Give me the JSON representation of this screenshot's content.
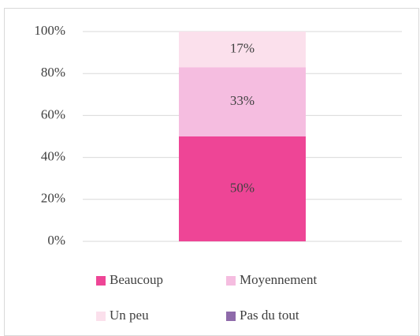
{
  "chart_data": {
    "type": "stacked_bar",
    "categories": [
      null
    ],
    "series": [
      {
        "name": "Beaucoup",
        "color": "#ee4596",
        "values": [
          50
        ],
        "value_labels": [
          "50%"
        ]
      },
      {
        "name": "Moyennement",
        "color": "#f5bde0",
        "values": [
          33
        ],
        "value_labels": [
          "33%"
        ]
      },
      {
        "name": "Un peu",
        "color": "#fbe0ec",
        "values": [
          17
        ],
        "value_labels": [
          "17%"
        ]
      },
      {
        "name": "Pas du tout",
        "color": "#8e6aaa",
        "values": [
          0
        ],
        "value_labels": [
          null
        ]
      }
    ],
    "ylim": [
      0,
      100
    ],
    "yticks": [
      {
        "value": 0,
        "label": "0%"
      },
      {
        "value": 20,
        "label": "20%"
      },
      {
        "value": 40,
        "label": "40%"
      },
      {
        "value": 60,
        "label": "60%"
      },
      {
        "value": 80,
        "label": "80%"
      },
      {
        "value": 100,
        "label": "100%"
      }
    ],
    "grid": true,
    "legend": "bottom"
  }
}
